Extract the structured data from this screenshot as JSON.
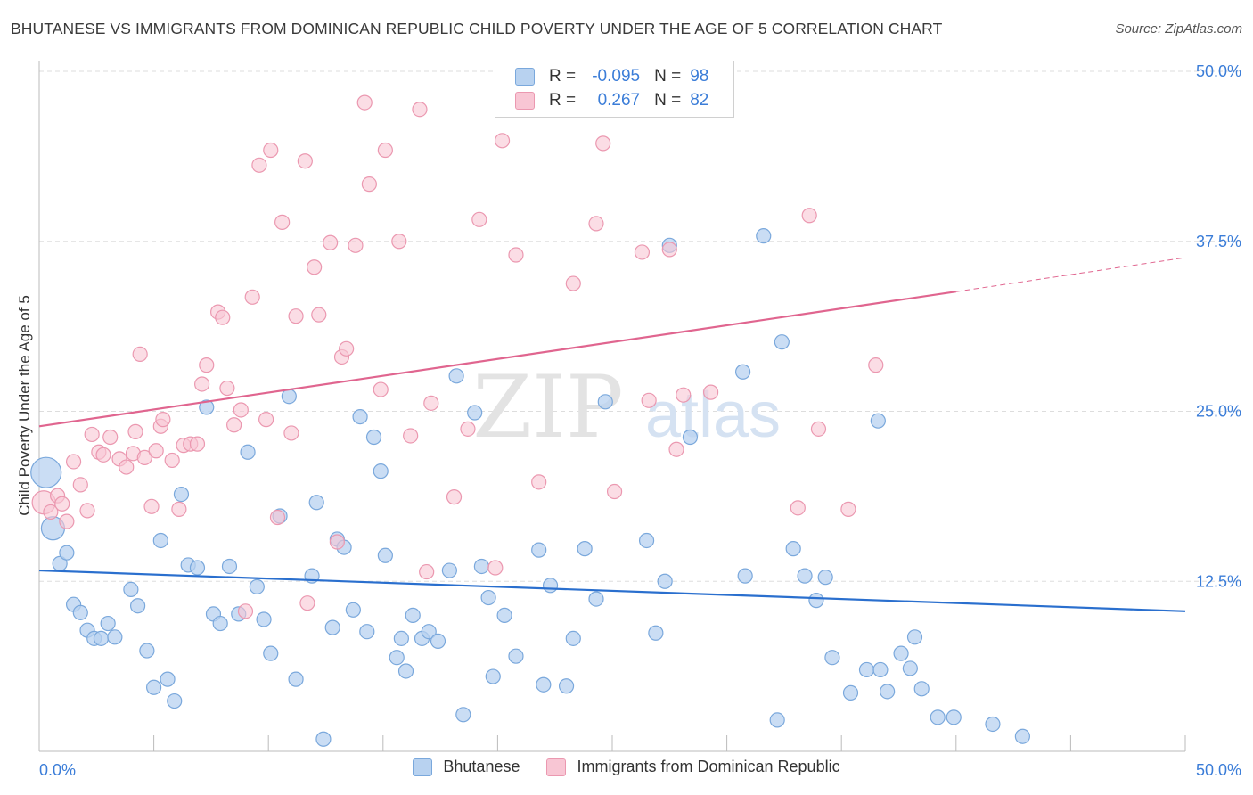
{
  "title": "BHUTANESE VS IMMIGRANTS FROM DOMINICAN REPUBLIC CHILD POVERTY UNDER THE AGE OF 5 CORRELATION CHART",
  "source": "Source: ZipAtlas.com",
  "watermark": {
    "zip": "ZIP",
    "atlas": "atlas"
  },
  "legend_top": {
    "rows": [
      {
        "r_label": "R =",
        "r_value": "-0.095",
        "n_label": "N =",
        "n_value": "98"
      },
      {
        "r_label": "R =",
        "r_value": "0.267",
        "n_label": "N =",
        "n_value": "82"
      }
    ]
  },
  "legend_bottom": {
    "items": [
      {
        "label": "Bhutanese"
      },
      {
        "label": "Immigrants from Dominican Republic"
      }
    ]
  },
  "colors": {
    "blue_fill": "#b8d2f0",
    "blue_stroke": "#7aa8dc",
    "blue_line": "#2a6fce",
    "pink_fill": "#f8c6d4",
    "pink_stroke": "#eb98b0",
    "pink_line": "#e0658f",
    "tick_label": "#3b7dd8",
    "grid": "#dddddd"
  },
  "chart_data": {
    "type": "scatter",
    "title": "BHUTANESE VS IMMIGRANTS FROM DOMINICAN REPUBLIC CHILD POVERTY UNDER THE AGE OF 5 CORRELATION CHART",
    "ylabel": "Child Poverty Under the Age of 5",
    "xlabel": "",
    "xlim": [
      0,
      50
    ],
    "ylim": [
      0,
      50
    ],
    "x_tick_labels": [
      "0.0%",
      "50.0%"
    ],
    "y_ticks": [
      12.5,
      25.0,
      37.5,
      50.0
    ],
    "y_tick_labels": [
      "12.5%",
      "25.0%",
      "37.5%",
      "50.0%"
    ],
    "grid": "horizontal dashed",
    "legend_position": "top-center",
    "series": [
      {
        "name": "Bhutanese",
        "color": "#b8d2f0",
        "trend": {
          "x0": 0,
          "y0": 13.3,
          "x1": 50,
          "y1": 10.3
        },
        "points": [
          [
            0.3,
            20.5
          ],
          [
            0.6,
            16.4
          ],
          [
            0.9,
            13.8
          ],
          [
            1.2,
            14.6
          ],
          [
            1.5,
            10.8
          ],
          [
            1.8,
            10.2
          ],
          [
            2.1,
            8.9
          ],
          [
            2.4,
            8.3
          ],
          [
            2.7,
            8.3
          ],
          [
            3.0,
            9.4
          ],
          [
            3.3,
            8.4
          ],
          [
            4.0,
            11.9
          ],
          [
            4.3,
            10.7
          ],
          [
            4.7,
            7.4
          ],
          [
            5.0,
            4.7
          ],
          [
            5.3,
            15.5
          ],
          [
            5.6,
            5.3
          ],
          [
            5.9,
            3.7
          ],
          [
            6.2,
            18.9
          ],
          [
            6.5,
            13.7
          ],
          [
            6.9,
            13.5
          ],
          [
            7.3,
            25.3
          ],
          [
            7.6,
            10.1
          ],
          [
            7.9,
            9.4
          ],
          [
            8.3,
            13.6
          ],
          [
            8.7,
            10.1
          ],
          [
            9.1,
            22.0
          ],
          [
            9.5,
            12.1
          ],
          [
            9.8,
            9.7
          ],
          [
            10.1,
            7.2
          ],
          [
            10.5,
            17.3
          ],
          [
            10.9,
            26.1
          ],
          [
            11.2,
            5.3
          ],
          [
            11.9,
            12.9
          ],
          [
            12.1,
            18.3
          ],
          [
            12.4,
            0.9
          ],
          [
            12.8,
            9.1
          ],
          [
            13.0,
            15.6
          ],
          [
            13.3,
            15.0
          ],
          [
            13.7,
            10.4
          ],
          [
            14.0,
            24.6
          ],
          [
            14.3,
            8.8
          ],
          [
            14.6,
            23.1
          ],
          [
            14.9,
            20.6
          ],
          [
            15.1,
            14.4
          ],
          [
            15.6,
            6.9
          ],
          [
            15.8,
            8.3
          ],
          [
            16.0,
            5.9
          ],
          [
            16.3,
            10.0
          ],
          [
            16.7,
            8.3
          ],
          [
            17.0,
            8.8
          ],
          [
            17.4,
            8.1
          ],
          [
            17.9,
            13.3
          ],
          [
            18.2,
            27.6
          ],
          [
            18.5,
            2.7
          ],
          [
            19.0,
            24.9
          ],
          [
            19.3,
            13.6
          ],
          [
            19.6,
            11.3
          ],
          [
            19.8,
            5.5
          ],
          [
            20.3,
            10.0
          ],
          [
            20.8,
            7.0
          ],
          [
            21.8,
            14.8
          ],
          [
            22.0,
            4.9
          ],
          [
            22.3,
            12.2
          ],
          [
            23.0,
            4.8
          ],
          [
            23.3,
            8.3
          ],
          [
            23.8,
            14.9
          ],
          [
            24.3,
            11.2
          ],
          [
            24.7,
            25.7
          ],
          [
            26.5,
            15.5
          ],
          [
            26.9,
            8.7
          ],
          [
            27.3,
            12.5
          ],
          [
            27.5,
            37.2
          ],
          [
            28.4,
            23.1
          ],
          [
            30.7,
            27.9
          ],
          [
            30.8,
            12.9
          ],
          [
            31.6,
            37.9
          ],
          [
            32.4,
            30.1
          ],
          [
            32.2,
            2.3
          ],
          [
            32.9,
            14.9
          ],
          [
            33.4,
            12.9
          ],
          [
            33.9,
            11.1
          ],
          [
            34.3,
            12.8
          ],
          [
            34.6,
            6.9
          ],
          [
            35.4,
            4.3
          ],
          [
            36.1,
            6.0
          ],
          [
            36.6,
            24.3
          ],
          [
            36.7,
            6.0
          ],
          [
            37.0,
            4.4
          ],
          [
            37.6,
            7.2
          ],
          [
            38.0,
            6.1
          ],
          [
            38.2,
            8.4
          ],
          [
            38.5,
            4.6
          ],
          [
            39.2,
            2.5
          ],
          [
            39.9,
            2.5
          ],
          [
            41.6,
            2.0
          ],
          [
            42.9,
            1.1
          ]
        ]
      },
      {
        "name": "Immigrants from Dominican Republic",
        "color": "#f8c6d4",
        "trend": {
          "x0": 0,
          "y0": 23.9,
          "x1": 40,
          "y1": 33.8,
          "dashed_to_x": 50,
          "dashed_to_y": 36.3
        },
        "points": [
          [
            0.2,
            18.3
          ],
          [
            0.5,
            17.6
          ],
          [
            0.8,
            18.8
          ],
          [
            1.0,
            18.2
          ],
          [
            1.2,
            16.9
          ],
          [
            1.5,
            21.3
          ],
          [
            1.8,
            19.6
          ],
          [
            2.1,
            17.7
          ],
          [
            2.3,
            23.3
          ],
          [
            2.6,
            22.0
          ],
          [
            2.8,
            21.8
          ],
          [
            3.1,
            23.1
          ],
          [
            3.5,
            21.5
          ],
          [
            3.8,
            20.9
          ],
          [
            4.1,
            21.9
          ],
          [
            4.2,
            23.5
          ],
          [
            4.4,
            29.2
          ],
          [
            4.6,
            21.6
          ],
          [
            4.9,
            18.0
          ],
          [
            5.1,
            22.1
          ],
          [
            5.3,
            23.9
          ],
          [
            5.4,
            24.4
          ],
          [
            5.8,
            21.4
          ],
          [
            6.1,
            17.8
          ],
          [
            6.3,
            22.5
          ],
          [
            6.6,
            22.6
          ],
          [
            6.9,
            22.6
          ],
          [
            7.1,
            27.0
          ],
          [
            7.3,
            28.4
          ],
          [
            7.8,
            32.3
          ],
          [
            8.0,
            31.9
          ],
          [
            8.2,
            26.7
          ],
          [
            8.5,
            24.0
          ],
          [
            8.8,
            25.1
          ],
          [
            9.0,
            10.3
          ],
          [
            9.3,
            33.4
          ],
          [
            9.6,
            43.1
          ],
          [
            9.9,
            24.4
          ],
          [
            10.1,
            44.2
          ],
          [
            10.4,
            17.2
          ],
          [
            10.6,
            38.9
          ],
          [
            11.0,
            23.4
          ],
          [
            11.2,
            32.0
          ],
          [
            11.6,
            43.4
          ],
          [
            11.7,
            10.9
          ],
          [
            12.0,
            35.6
          ],
          [
            12.2,
            32.1
          ],
          [
            12.7,
            37.4
          ],
          [
            13.0,
            15.4
          ],
          [
            13.2,
            29.0
          ],
          [
            13.4,
            29.6
          ],
          [
            13.8,
            37.2
          ],
          [
            14.2,
            47.7
          ],
          [
            14.4,
            41.7
          ],
          [
            14.9,
            26.6
          ],
          [
            15.1,
            44.2
          ],
          [
            15.7,
            37.5
          ],
          [
            16.2,
            23.2
          ],
          [
            16.6,
            47.2
          ],
          [
            16.9,
            13.2
          ],
          [
            17.1,
            25.6
          ],
          [
            18.1,
            18.7
          ],
          [
            18.7,
            23.7
          ],
          [
            19.2,
            39.1
          ],
          [
            19.9,
            13.5
          ],
          [
            20.2,
            44.9
          ],
          [
            20.8,
            36.5
          ],
          [
            21.8,
            19.8
          ],
          [
            23.3,
            34.4
          ],
          [
            24.3,
            38.8
          ],
          [
            24.6,
            44.7
          ],
          [
            25.1,
            19.1
          ],
          [
            26.3,
            36.7
          ],
          [
            26.6,
            25.8
          ],
          [
            27.5,
            36.9
          ],
          [
            27.8,
            22.2
          ],
          [
            28.1,
            26.2
          ],
          [
            29.3,
            26.4
          ],
          [
            33.1,
            17.9
          ],
          [
            33.6,
            39.4
          ],
          [
            34.0,
            23.7
          ],
          [
            35.3,
            17.8
          ],
          [
            36.5,
            28.4
          ]
        ]
      }
    ]
  }
}
